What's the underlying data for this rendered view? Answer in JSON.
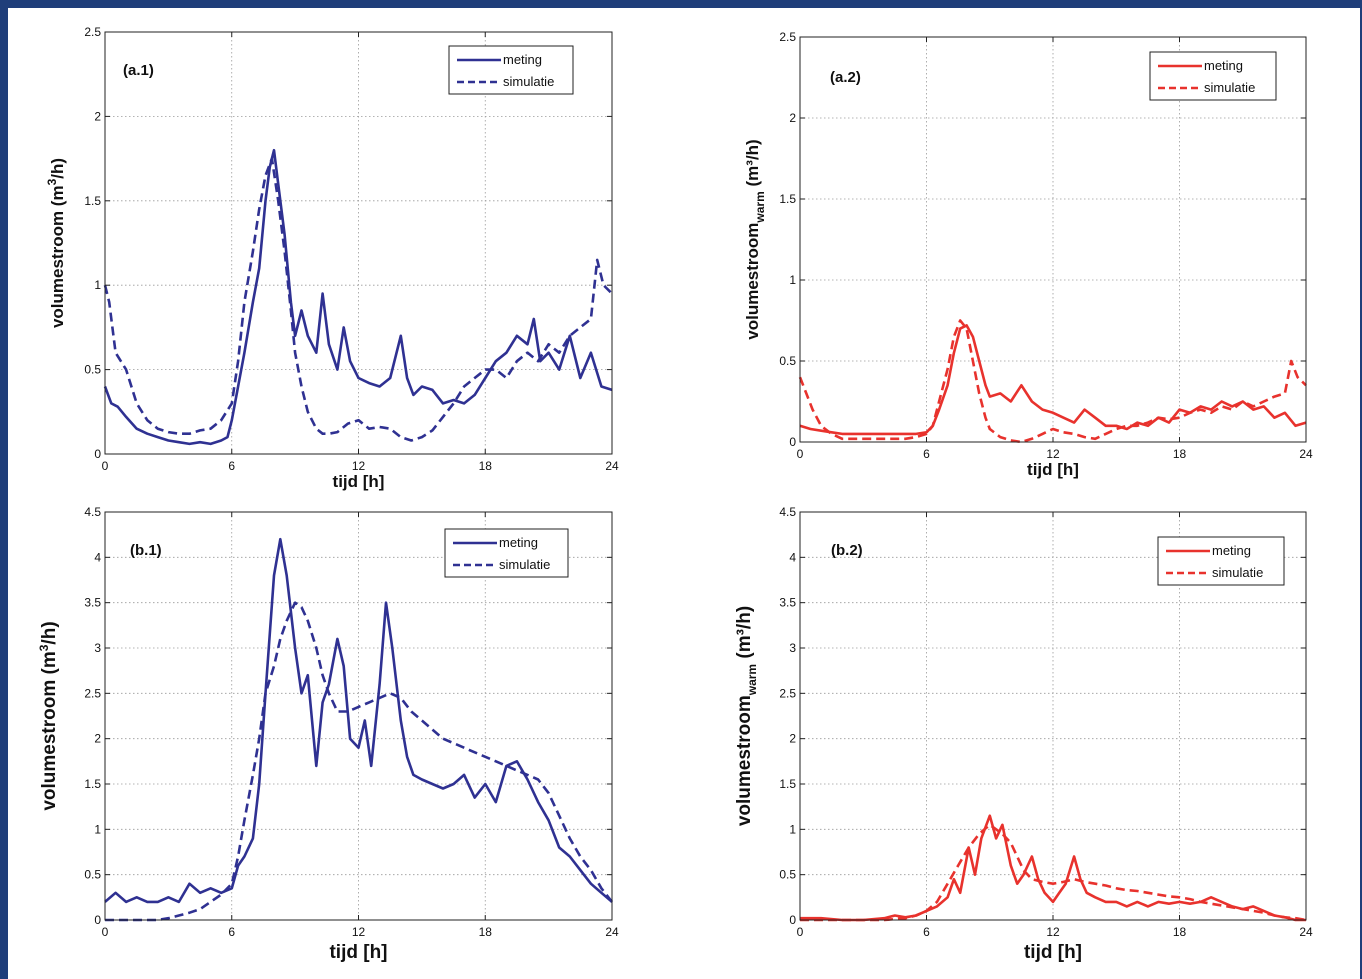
{
  "chart_data": [
    {
      "type": "line",
      "panel_label": "(a.1)",
      "xlabel": "tijd [h]",
      "ylabel_main": "volumestroom (m",
      "ylabel_sup": "3",
      "ylabel_sub": "",
      "ylabel_tail": "/h)",
      "xlim": [
        0,
        24
      ],
      "ylim": [
        0,
        2.5
      ],
      "xticks": [
        0,
        6,
        12,
        18,
        24
      ],
      "xtick_labels": [
        "0",
        "6",
        "12",
        "18",
        "24"
      ],
      "yticks": [
        0,
        0.5,
        1,
        1.5,
        2,
        2.5
      ],
      "ytick_labels": [
        "0",
        "0.5",
        "1",
        "1.5",
        "2",
        "2.5"
      ],
      "grid": true,
      "legend_position": "top-right",
      "color": "#2f3192",
      "series": [
        {
          "name": "meting",
          "style": "solid",
          "x": [
            0,
            0.3,
            0.6,
            1,
            1.5,
            2,
            2.5,
            3,
            3.5,
            4,
            4.5,
            5,
            5.5,
            5.8,
            6,
            6.3,
            6.6,
            7,
            7.3,
            7.6,
            7.8,
            8,
            8.2,
            8.5,
            8.8,
            9,
            9.3,
            9.6,
            10,
            10.3,
            10.6,
            11,
            11.3,
            11.6,
            12,
            12.5,
            13,
            13.5,
            14,
            14.3,
            14.6,
            15,
            15.5,
            16,
            16.5,
            17,
            17.5,
            18,
            18.5,
            19,
            19.5,
            20,
            20.3,
            20.6,
            21,
            21.5,
            22,
            22.5,
            23,
            23.5,
            24
          ],
          "y": [
            0.4,
            0.3,
            0.28,
            0.22,
            0.15,
            0.12,
            0.1,
            0.08,
            0.07,
            0.06,
            0.07,
            0.06,
            0.08,
            0.1,
            0.2,
            0.4,
            0.6,
            0.9,
            1.1,
            1.5,
            1.7,
            1.8,
            1.6,
            1.3,
            0.9,
            0.7,
            0.85,
            0.7,
            0.6,
            0.95,
            0.65,
            0.5,
            0.75,
            0.55,
            0.45,
            0.42,
            0.4,
            0.45,
            0.7,
            0.45,
            0.35,
            0.4,
            0.38,
            0.3,
            0.32,
            0.3,
            0.35,
            0.45,
            0.55,
            0.6,
            0.7,
            0.65,
            0.8,
            0.55,
            0.6,
            0.5,
            0.7,
            0.45,
            0.6,
            0.4,
            0.38
          ]
        },
        {
          "name": "simulatie",
          "style": "dashed",
          "x": [
            0,
            0.2,
            0.5,
            1,
            1.5,
            2,
            2.5,
            3,
            3.5,
            4,
            4.5,
            5,
            5.5,
            6,
            6.3,
            6.6,
            7,
            7.3,
            7.6,
            7.9,
            8.2,
            8.5,
            8.8,
            9,
            9.3,
            9.6,
            10,
            10.3,
            10.6,
            11,
            11.5,
            12,
            12.5,
            13,
            13.5,
            14,
            14.5,
            15,
            15.5,
            16,
            16.5,
            17,
            17.5,
            18,
            18.5,
            19,
            19.5,
            20,
            20.5,
            21,
            21.5,
            22,
            22.5,
            23,
            23.3,
            23.6,
            24
          ],
          "y": [
            1.0,
            0.9,
            0.6,
            0.5,
            0.3,
            0.2,
            0.15,
            0.13,
            0.12,
            0.12,
            0.14,
            0.15,
            0.2,
            0.3,
            0.55,
            0.9,
            1.2,
            1.45,
            1.65,
            1.75,
            1.5,
            1.2,
            0.85,
            0.6,
            0.4,
            0.25,
            0.15,
            0.12,
            0.12,
            0.13,
            0.18,
            0.2,
            0.15,
            0.16,
            0.15,
            0.1,
            0.08,
            0.1,
            0.14,
            0.22,
            0.3,
            0.4,
            0.45,
            0.5,
            0.5,
            0.45,
            0.55,
            0.6,
            0.55,
            0.65,
            0.6,
            0.7,
            0.75,
            0.8,
            1.15,
            1.0,
            0.95
          ]
        }
      ]
    },
    {
      "type": "line",
      "panel_label": "(a.2)",
      "xlabel": "tijd [h]",
      "ylabel_main": "volumestroom",
      "ylabel_sup": "",
      "ylabel_sub": "warm",
      "ylabel_tail": " (m³/h)",
      "xlim": [
        0,
        24
      ],
      "ylim": [
        0,
        2.5
      ],
      "xticks": [
        0,
        6,
        12,
        18,
        24
      ],
      "xtick_labels": [
        "0",
        "6",
        "12",
        "18",
        "24"
      ],
      "yticks": [
        0,
        0.5,
        1,
        1.5,
        2,
        2.5
      ],
      "ytick_labels": [
        "0",
        "0.5",
        "1",
        "1.5",
        "2",
        "2.5"
      ],
      "grid": true,
      "legend_position": "top-right",
      "color": "#e8322d",
      "series": [
        {
          "name": "meting",
          "style": "solid",
          "x": [
            0,
            0.5,
            1,
            1.5,
            2,
            3,
            4,
            5,
            5.5,
            6,
            6.3,
            6.6,
            7,
            7.3,
            7.6,
            7.9,
            8.2,
            8.5,
            8.8,
            9,
            9.5,
            10,
            10.5,
            11,
            11.5,
            12,
            12.5,
            13,
            13.5,
            14,
            14.5,
            15,
            15.5,
            16,
            16.5,
            17,
            17.5,
            18,
            18.5,
            19,
            19.5,
            20,
            20.5,
            21,
            21.5,
            22,
            22.5,
            23,
            23.5,
            24
          ],
          "y": [
            0.1,
            0.08,
            0.07,
            0.06,
            0.05,
            0.05,
            0.05,
            0.05,
            0.05,
            0.06,
            0.1,
            0.2,
            0.35,
            0.55,
            0.7,
            0.72,
            0.65,
            0.5,
            0.35,
            0.28,
            0.3,
            0.25,
            0.35,
            0.25,
            0.2,
            0.18,
            0.15,
            0.12,
            0.2,
            0.15,
            0.1,
            0.1,
            0.08,
            0.12,
            0.1,
            0.15,
            0.12,
            0.2,
            0.18,
            0.22,
            0.2,
            0.25,
            0.22,
            0.25,
            0.2,
            0.22,
            0.15,
            0.18,
            0.1,
            0.12
          ]
        },
        {
          "name": "simulatie",
          "style": "dashed",
          "x": [
            0,
            0.3,
            0.6,
            1,
            1.5,
            2,
            3,
            4,
            5,
            5.5,
            6,
            6.3,
            6.6,
            7,
            7.3,
            7.6,
            7.9,
            8.2,
            8.5,
            8.8,
            9,
            9.5,
            10,
            10.5,
            11,
            11.5,
            12,
            12.5,
            13,
            13.5,
            14,
            14.5,
            15,
            15.5,
            16,
            16.5,
            17,
            17.5,
            18,
            18.5,
            19,
            19.5,
            20,
            20.5,
            21,
            21.5,
            22,
            22.5,
            23,
            23.3,
            23.6,
            24
          ],
          "y": [
            0.4,
            0.3,
            0.2,
            0.1,
            0.05,
            0.02,
            0.02,
            0.02,
            0.02,
            0.03,
            0.05,
            0.1,
            0.25,
            0.45,
            0.65,
            0.75,
            0.7,
            0.5,
            0.3,
            0.15,
            0.08,
            0.03,
            0.01,
            0.0,
            0.02,
            0.05,
            0.08,
            0.06,
            0.05,
            0.03,
            0.02,
            0.05,
            0.08,
            0.1,
            0.1,
            0.12,
            0.15,
            0.14,
            0.15,
            0.18,
            0.2,
            0.18,
            0.22,
            0.2,
            0.25,
            0.22,
            0.25,
            0.28,
            0.3,
            0.5,
            0.4,
            0.35
          ]
        }
      ]
    },
    {
      "type": "line",
      "panel_label": "(b.1)",
      "xlabel": "tijd [h]",
      "ylabel_main": "volumestroom (m",
      "ylabel_sup": "3",
      "ylabel_sub": "",
      "ylabel_tail": "/h)",
      "xlim": [
        0,
        24
      ],
      "ylim": [
        0,
        4.5
      ],
      "xticks": [
        0,
        6,
        12,
        18,
        24
      ],
      "xtick_labels": [
        "0",
        "6",
        "12",
        "18",
        "24"
      ],
      "yticks": [
        0,
        0.5,
        1,
        1.5,
        2,
        2.5,
        3,
        3.5,
        4,
        4.5
      ],
      "ytick_labels": [
        "0",
        "0.5",
        "1",
        "1.5",
        "2",
        "2.5",
        "3",
        "3.5",
        "4",
        "4.5"
      ],
      "grid": true,
      "legend_position": "top-right",
      "color": "#2f3192",
      "series": [
        {
          "name": "meting",
          "style": "solid",
          "x": [
            0,
            0.5,
            1,
            1.5,
            2,
            2.5,
            3,
            3.5,
            4,
            4.5,
            5,
            5.5,
            6,
            6.3,
            6.6,
            7,
            7.3,
            7.6,
            8,
            8.3,
            8.6,
            9,
            9.3,
            9.6,
            10,
            10.3,
            10.6,
            11,
            11.3,
            11.6,
            12,
            12.3,
            12.6,
            13,
            13.3,
            13.6,
            14,
            14.3,
            14.6,
            15,
            15.5,
            16,
            16.5,
            17,
            17.5,
            18,
            18.5,
            19,
            19.5,
            20,
            20.5,
            21,
            21.5,
            22,
            22.5,
            23,
            23.5,
            24
          ],
          "y": [
            0.2,
            0.3,
            0.2,
            0.25,
            0.2,
            0.2,
            0.25,
            0.2,
            0.4,
            0.3,
            0.35,
            0.3,
            0.35,
            0.6,
            0.7,
            0.9,
            1.5,
            2.5,
            3.8,
            4.2,
            3.8,
            3.0,
            2.5,
            2.7,
            1.7,
            2.4,
            2.6,
            3.1,
            2.8,
            2.0,
            1.9,
            2.2,
            1.7,
            2.6,
            3.5,
            3.0,
            2.2,
            1.8,
            1.6,
            1.55,
            1.5,
            1.45,
            1.5,
            1.6,
            1.35,
            1.5,
            1.3,
            1.7,
            1.75,
            1.55,
            1.3,
            1.1,
            0.8,
            0.7,
            0.55,
            0.4,
            0.3,
            0.2
          ]
        },
        {
          "name": "simulatie",
          "style": "dashed",
          "x": [
            0,
            0.5,
            1,
            1.5,
            2,
            2.5,
            3,
            3.5,
            4,
            4.5,
            5,
            5.5,
            6,
            6.3,
            6.6,
            7,
            7.3,
            7.6,
            8,
            8.3,
            8.6,
            9,
            9.3,
            9.6,
            10,
            10.3,
            10.6,
            11,
            11.5,
            12,
            12.5,
            13,
            13.5,
            14,
            14.5,
            15,
            15.5,
            16,
            16.5,
            17,
            17.5,
            18,
            18.5,
            19,
            19.5,
            20,
            20.5,
            21,
            21.5,
            22,
            22.5,
            23,
            23.5,
            24
          ],
          "y": [
            0.0,
            0.0,
            0.0,
            0.0,
            0.0,
            0.0,
            0.02,
            0.05,
            0.08,
            0.12,
            0.2,
            0.28,
            0.4,
            0.7,
            1.1,
            1.6,
            2.0,
            2.5,
            2.8,
            3.1,
            3.3,
            3.5,
            3.45,
            3.3,
            3.0,
            2.7,
            2.5,
            2.3,
            2.3,
            2.35,
            2.4,
            2.45,
            2.5,
            2.45,
            2.3,
            2.2,
            2.1,
            2.0,
            1.95,
            1.9,
            1.85,
            1.8,
            1.75,
            1.7,
            1.65,
            1.6,
            1.55,
            1.4,
            1.15,
            0.9,
            0.7,
            0.55,
            0.35,
            0.2
          ]
        }
      ]
    },
    {
      "type": "line",
      "panel_label": "(b.2)",
      "xlabel": "tijd [h]",
      "ylabel_main": "volumestroom",
      "ylabel_sup": "",
      "ylabel_sub": "warm",
      "ylabel_tail": " (m³/h)",
      "xlim": [
        0,
        24
      ],
      "ylim": [
        0,
        4.5
      ],
      "xticks": [
        0,
        6,
        12,
        18,
        24
      ],
      "xtick_labels": [
        "0",
        "6",
        "12",
        "18",
        "24"
      ],
      "yticks": [
        0,
        0.5,
        1,
        1.5,
        2,
        2.5,
        3,
        3.5,
        4,
        4.5
      ],
      "ytick_labels": [
        "0",
        "0.5",
        "1",
        "1.5",
        "2",
        "2.5",
        "3",
        "3.5",
        "4",
        "4.5"
      ],
      "grid": true,
      "legend_position": "top-right",
      "color": "#e8322d",
      "series": [
        {
          "name": "meting",
          "style": "solid",
          "x": [
            0,
            1,
            2,
            3,
            4,
            4.5,
            5,
            5.5,
            6,
            6.5,
            7,
            7.3,
            7.6,
            8,
            8.3,
            8.6,
            9,
            9.3,
            9.6,
            10,
            10.3,
            10.6,
            11,
            11.3,
            11.6,
            12,
            12.3,
            12.6,
            13,
            13.3,
            13.6,
            14,
            14.5,
            15,
            15.5,
            16,
            16.5,
            17,
            17.5,
            18,
            18.5,
            19,
            19.5,
            20,
            20.5,
            21,
            21.5,
            22,
            22.5,
            23,
            23.5,
            24
          ],
          "y": [
            0.02,
            0.02,
            0.0,
            0.0,
            0.02,
            0.05,
            0.03,
            0.05,
            0.1,
            0.15,
            0.25,
            0.45,
            0.3,
            0.8,
            0.5,
            0.9,
            1.15,
            0.9,
            1.05,
            0.6,
            0.4,
            0.5,
            0.7,
            0.45,
            0.3,
            0.2,
            0.3,
            0.4,
            0.7,
            0.45,
            0.3,
            0.25,
            0.2,
            0.2,
            0.15,
            0.2,
            0.15,
            0.2,
            0.18,
            0.2,
            0.18,
            0.2,
            0.25,
            0.2,
            0.15,
            0.12,
            0.15,
            0.1,
            0.05,
            0.03,
            0.0,
            0.0
          ]
        },
        {
          "name": "simulatie",
          "style": "dashed",
          "x": [
            0,
            1,
            2,
            3,
            4,
            5,
            5.5,
            6,
            6.5,
            7,
            7.5,
            8,
            8.5,
            9,
            9.3,
            9.6,
            10,
            10.3,
            10.6,
            11,
            11.5,
            12,
            12.5,
            13,
            13.5,
            14,
            14.5,
            15,
            15.5,
            16,
            16.5,
            17,
            17.5,
            18,
            18.5,
            19,
            19.5,
            20,
            20.5,
            21,
            21.5,
            22,
            22.5,
            23,
            23.5,
            24
          ],
          "y": [
            0.0,
            0.0,
            0.0,
            0.0,
            0.0,
            0.02,
            0.05,
            0.1,
            0.2,
            0.4,
            0.6,
            0.8,
            0.95,
            1.05,
            1.0,
            0.95,
            0.85,
            0.7,
            0.55,
            0.45,
            0.42,
            0.4,
            0.42,
            0.45,
            0.42,
            0.4,
            0.38,
            0.35,
            0.33,
            0.32,
            0.3,
            0.28,
            0.26,
            0.25,
            0.23,
            0.2,
            0.18,
            0.16,
            0.14,
            0.12,
            0.1,
            0.08,
            0.05,
            0.03,
            0.02,
            0.0
          ]
        }
      ]
    }
  ]
}
